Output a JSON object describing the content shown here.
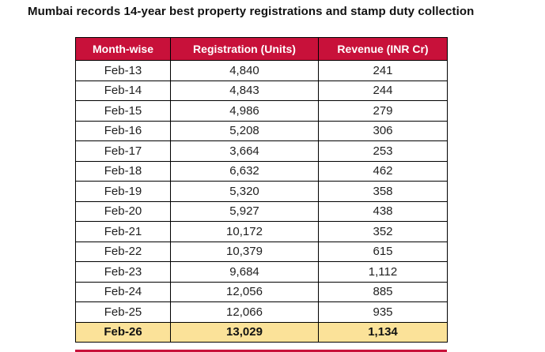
{
  "title": "Mumbai records 14-year best property registrations and stamp duty collection",
  "colors": {
    "header_bg": "#C8113A",
    "header_text": "#FFFFFF",
    "highlight_bg": "#FBE299",
    "border": "#000000",
    "body_text": "#1F1F1F"
  },
  "table": {
    "columns": [
      "Month-wise",
      "Registration (Units)",
      "Revenue (INR Cr)"
    ],
    "rows": [
      [
        "Feb-13",
        "4,840",
        "241"
      ],
      [
        "Feb-14",
        "4,843",
        "244"
      ],
      [
        "Feb-15",
        "4,986",
        "279"
      ],
      [
        "Feb-16",
        "5,208",
        "306"
      ],
      [
        "Feb-17",
        "3,664",
        "253"
      ],
      [
        "Feb-18",
        "6,632",
        "462"
      ],
      [
        "Feb-19",
        "5,320",
        "358"
      ],
      [
        "Feb-20",
        "5,927",
        "438"
      ],
      [
        "Feb-21",
        "10,172",
        "352"
      ],
      [
        "Feb-22",
        "10,379",
        "615"
      ],
      [
        "Feb-23",
        "9,684",
        "1,112"
      ],
      [
        "Feb-24",
        "12,056",
        "885"
      ],
      [
        "Feb-25",
        "12,066",
        "935"
      ],
      [
        "Feb-26",
        "13,029",
        "1,134"
      ]
    ],
    "highlight_row": "Feb-26"
  },
  "chart_data": {
    "type": "table",
    "title": "Mumbai records 14-year best property registrations and stamp duty collection",
    "columns": [
      "Month-wise",
      "Registration (Units)",
      "Revenue (INR Cr)"
    ],
    "categories": [
      "Feb-13",
      "Feb-14",
      "Feb-15",
      "Feb-16",
      "Feb-17",
      "Feb-18",
      "Feb-19",
      "Feb-20",
      "Feb-21",
      "Feb-22",
      "Feb-23",
      "Feb-24",
      "Feb-25",
      "Feb-26"
    ],
    "series": [
      {
        "name": "Registration (Units)",
        "values": [
          4840,
          4843,
          4986,
          5208,
          3664,
          6632,
          5320,
          5927,
          10172,
          10379,
          9684,
          12056,
          12066,
          13029
        ]
      },
      {
        "name": "Revenue (INR Cr)",
        "values": [
          241,
          244,
          279,
          306,
          253,
          462,
          358,
          438,
          352,
          615,
          1112,
          885,
          935,
          1134
        ]
      }
    ],
    "highlighted_category": "Feb-26"
  }
}
